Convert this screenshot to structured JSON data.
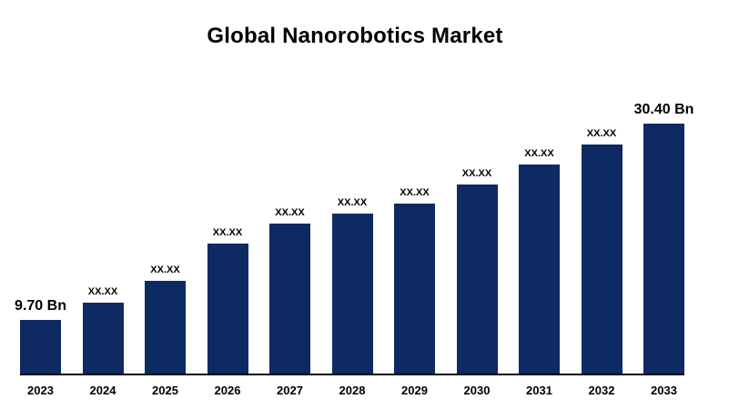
{
  "page": {
    "background": "#ffffff"
  },
  "chart_data": {
    "type": "bar",
    "title": "Global Nanorobotics Market",
    "categories": [
      "2023",
      "2024",
      "2025",
      "2026",
      "2027",
      "2028",
      "2029",
      "2030",
      "2031",
      "2032",
      "2033"
    ],
    "bar_labels": [
      "9.70 Bn",
      "XX.XX",
      "XX.XX",
      "XX.XX",
      "XX.XX",
      "XX.XX",
      "XX.XX",
      "XX.XX",
      "XX.XX",
      "XX.XX",
      "30.40 Bn"
    ],
    "values": [
      9.7,
      null,
      null,
      null,
      null,
      null,
      null,
      null,
      null,
      null,
      30.4
    ],
    "height_pct": [
      21.5,
      28.5,
      37,
      52,
      60,
      64,
      68,
      75.5,
      83.5,
      91.5,
      100
    ],
    "unit": "Bn",
    "bar_color": "#0d2a63",
    "axis_color": "#000000",
    "xlabel": "",
    "ylabel": "",
    "grid": false,
    "legend": false,
    "value_labels_shown": true,
    "masked_label_text": "XX.XX"
  }
}
